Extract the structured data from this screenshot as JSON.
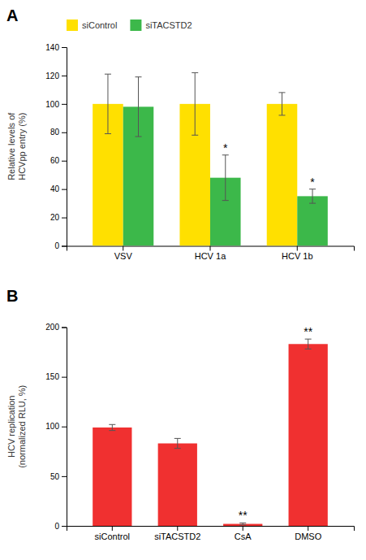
{
  "chart_data": [
    {
      "type": "bar",
      "title": "A",
      "categories": [
        "VSV",
        "HCV 1a",
        "HCV 1b"
      ],
      "series": [
        {
          "name": "siControl",
          "color": "#FFE000",
          "values": [
            100,
            100,
            100
          ],
          "errors": [
            21,
            22,
            8
          ]
        },
        {
          "name": "siTACSTD2",
          "color": "#3CB84A",
          "values": [
            98,
            48,
            35
          ],
          "errors": [
            21,
            16,
            5
          ],
          "annotations": [
            null,
            "*",
            "*"
          ]
        }
      ],
      "ylabel": "Relative levels of\nHCVpp entry (%)",
      "ylim": [
        0,
        140
      ],
      "yticks": [
        0,
        20,
        40,
        60,
        80,
        100,
        120,
        140
      ],
      "legend": "upper left",
      "grid": false
    },
    {
      "type": "bar",
      "title": "B",
      "categories": [
        "siControl",
        "siTACSTD2",
        "CsA",
        "DMSO"
      ],
      "values": [
        99,
        83,
        2,
        183
      ],
      "errors": [
        3,
        5,
        1,
        5
      ],
      "annotations": [
        null,
        null,
        "**",
        "**"
      ],
      "color": "#F03030",
      "ylabel": "HCV replication\n(normalized RLU, %)",
      "ylim": [
        0,
        200
      ],
      "yticks": [
        0,
        50,
        100,
        150,
        200
      ],
      "grid": false
    }
  ]
}
